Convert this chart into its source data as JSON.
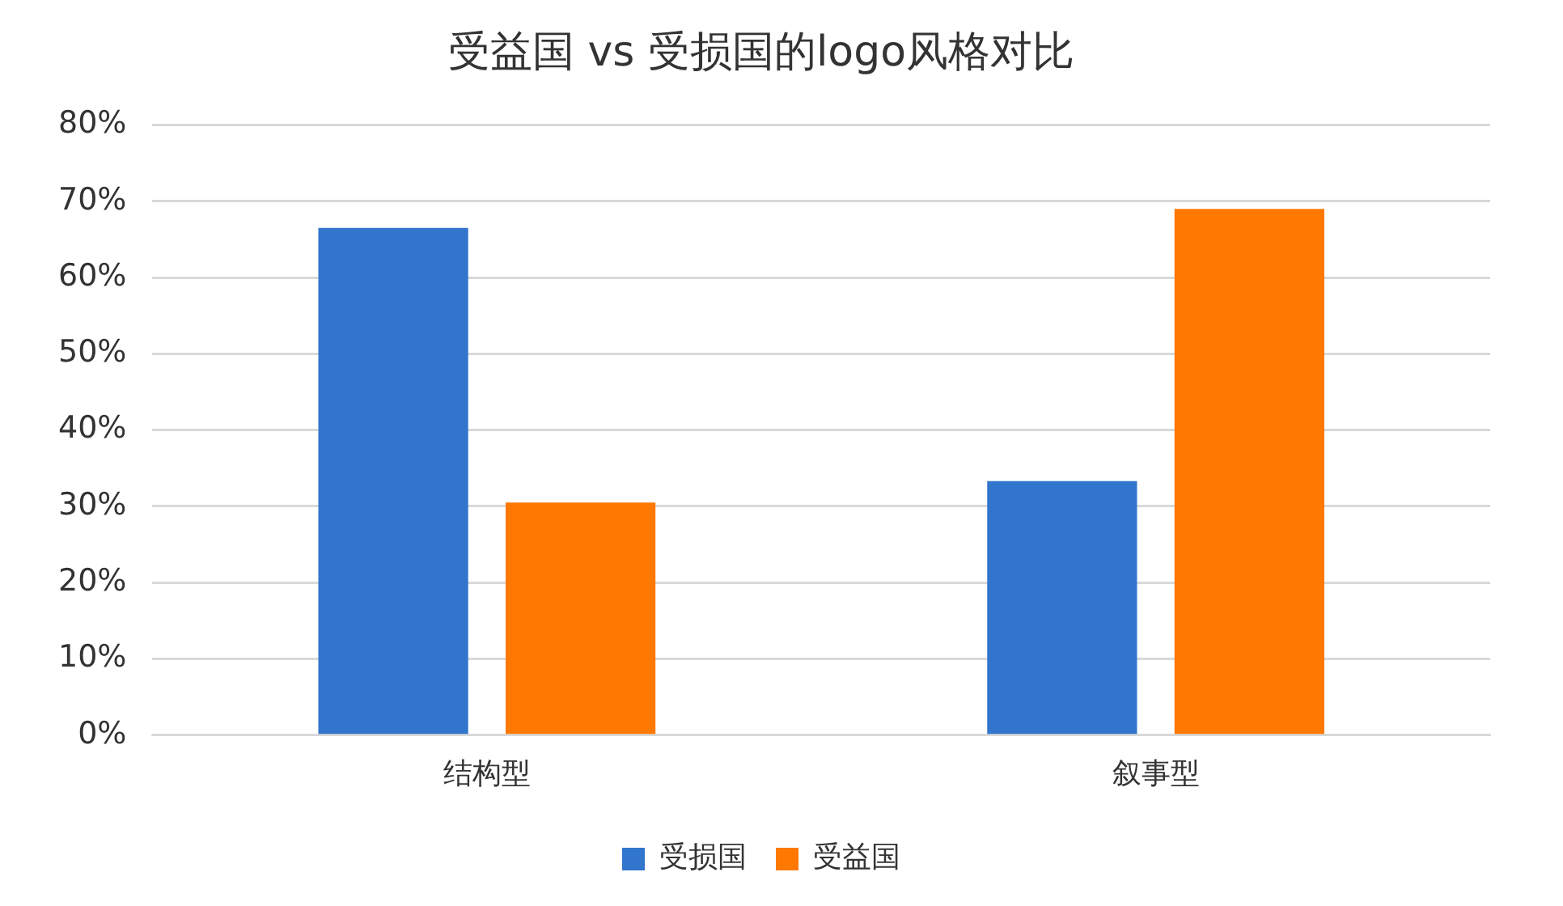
{
  "chart_data": {
    "type": "bar",
    "title": "受益国 vs 受损国的logo风格对比",
    "categories": [
      "结构型",
      "叙事型"
    ],
    "series": [
      {
        "name": "受损国",
        "color": "#3175cc",
        "values": [
          66.5,
          33.3
        ]
      },
      {
        "name": "受益国",
        "color": "#ff7800",
        "values": [
          30.5,
          69
        ]
      }
    ],
    "ylim": [
      0,
      80
    ],
    "yticks": [
      {
        "value": 0,
        "label": "0%"
      },
      {
        "value": 10,
        "label": "10%"
      },
      {
        "value": 20,
        "label": "20%"
      },
      {
        "value": 30,
        "label": "30%"
      },
      {
        "value": 40,
        "label": "40%"
      },
      {
        "value": 50,
        "label": "50%"
      },
      {
        "value": 60,
        "label": "60%"
      },
      {
        "value": 70,
        "label": "70%"
      },
      {
        "value": 80,
        "label": "80%"
      }
    ],
    "grid": "y",
    "legend": "bottom"
  }
}
